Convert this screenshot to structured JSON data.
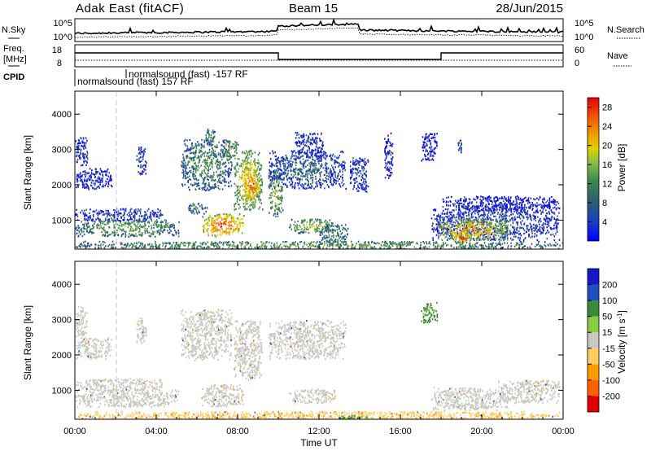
{
  "header": {
    "station": "Adak East (fitACF)",
    "beam": "Beam 15",
    "date": "28/Jun/2015"
  },
  "noise_panel": {
    "left_label": "N.Sky",
    "right_label": "N.Search",
    "left_ticks": [
      "10^5",
      "10^0"
    ],
    "right_ticks": [
      "10^5",
      "10^0"
    ]
  },
  "freq_panel": {
    "left_label_1": "Freq.",
    "left_label_2": "[MHz]",
    "right_label": "Nave",
    "left_ticks": [
      "18",
      "8"
    ],
    "right_ticks": [
      "60",
      "0"
    ]
  },
  "cpid_panel": {
    "label": "CPID",
    "entries": [
      {
        "text": "normalsound (fast) 157 RF",
        "start_hour": 0.0
      },
      {
        "text": "normalsound (fast) -157 RF",
        "start_hour": 2.05
      }
    ]
  },
  "colors": {
    "power": [
      "#1010e0",
      "#2a4fa0",
      "#3a8050",
      "#6aa055",
      "#e0d000",
      "#f0a000",
      "#f06000",
      "#e82000"
    ],
    "velocity": [
      "#e00000",
      "#ff6000",
      "#ff9a00",
      "#ffcc60",
      "#c8c8c0",
      "#88cc44",
      "#3a8a3a",
      "#2050c0",
      "#1818c8"
    ]
  },
  "chart_data": [
    {
      "type": "heatmap",
      "title": "Power",
      "xlabel": "Time UT",
      "ylabel": "Slant Range [km]",
      "x_ticks": [
        "00:00",
        "04:00",
        "08:00",
        "12:00",
        "16:00",
        "20:00",
        "00:00"
      ],
      "xlim_hours": [
        0,
        24
      ],
      "ylim": [
        180,
        4650
      ],
      "y_ticks": [
        1000,
        2000,
        3000,
        4000
      ],
      "colorbar": {
        "label": "Power [dB]",
        "ticks": [
          4,
          8,
          12,
          16,
          20,
          24,
          28
        ],
        "range": [
          0,
          30
        ]
      },
      "regions": [
        {
          "t": [
            0.0,
            5.1
          ],
          "r": [
            550,
            1050
          ],
          "level": 12
        },
        {
          "t": [
            0.0,
            4.3
          ],
          "r": [
            1000,
            1350
          ],
          "level": 5
        },
        {
          "t": [
            0.0,
            1.8
          ],
          "r": [
            1900,
            2500
          ],
          "level": 4
        },
        {
          "t": [
            0.0,
            0.6
          ],
          "r": [
            2500,
            3400
          ],
          "level": 5
        },
        {
          "t": [
            3.0,
            3.5
          ],
          "r": [
            2300,
            3100
          ],
          "level": 6
        },
        {
          "t": [
            5.2,
            7.7
          ],
          "r": [
            1850,
            3300
          ],
          "level": 10
        },
        {
          "t": [
            6.2,
            8.3
          ],
          "r": [
            550,
            1200
          ],
          "level": 24
        },
        {
          "t": [
            5.5,
            6.5
          ],
          "r": [
            1200,
            1500
          ],
          "level": 10
        },
        {
          "t": [
            6.3,
            6.9
          ],
          "r": [
            3200,
            3600
          ],
          "level": 10
        },
        {
          "t": [
            7.8,
            9.2
          ],
          "r": [
            1300,
            3000
          ],
          "level": 18
        },
        {
          "t": [
            7.2,
            8.0
          ],
          "r": [
            2800,
            3300
          ],
          "level": 14
        },
        {
          "t": [
            8.3,
            9.1
          ],
          "r": [
            1500,
            2500
          ],
          "level": 24
        },
        {
          "t": [
            9.5,
            10.2
          ],
          "r": [
            1100,
            2500
          ],
          "level": 14
        },
        {
          "t": [
            9.5,
            13.3
          ],
          "r": [
            1900,
            3000
          ],
          "level": 7
        },
        {
          "t": [
            10.8,
            12.2
          ],
          "r": [
            2800,
            3500
          ],
          "level": 5
        },
        {
          "t": [
            10.5,
            12.8
          ],
          "r": [
            650,
            1050
          ],
          "level": 14
        },
        {
          "t": [
            12.0,
            13.4
          ],
          "r": [
            300,
            900
          ],
          "level": 10
        },
        {
          "t": [
            13.5,
            14.4
          ],
          "r": [
            1800,
            2800
          ],
          "level": 5
        },
        {
          "t": [
            15.2,
            15.6
          ],
          "r": [
            2200,
            3500
          ],
          "level": 4
        },
        {
          "t": [
            17.0,
            17.8
          ],
          "r": [
            2700,
            3500
          ],
          "level": 4
        },
        {
          "t": [
            17.5,
            23.8
          ],
          "r": [
            450,
            1450
          ],
          "level": 6
        },
        {
          "t": [
            17.8,
            21.4
          ],
          "r": [
            450,
            1050
          ],
          "level": 20
        },
        {
          "t": [
            18.6,
            19.4
          ],
          "r": [
            350,
            700
          ],
          "level": 26
        },
        {
          "t": [
            18.0,
            23.8
          ],
          "r": [
            1300,
            1700
          ],
          "level": 3
        },
        {
          "t": [
            18.8,
            19.0
          ],
          "r": [
            2900,
            3300
          ],
          "level": 5
        },
        {
          "t": [
            0.0,
            24.0
          ],
          "r": [
            180,
            420
          ],
          "level": 12
        }
      ]
    },
    {
      "type": "heatmap",
      "title": "Velocity",
      "xlabel": "Time UT",
      "ylabel": "Slant Range [km]",
      "x_ticks": [
        "00:00",
        "04:00",
        "08:00",
        "12:00",
        "16:00",
        "20:00",
        "00:00"
      ],
      "xlim_hours": [
        0,
        24
      ],
      "ylim": [
        180,
        4650
      ],
      "y_ticks": [
        1000,
        2000,
        3000,
        4000
      ],
      "colorbar": {
        "label": "Velocity [m s^-1]",
        "ticks": [
          200,
          100,
          50,
          15,
          -15,
          -50,
          -100,
          -200
        ],
        "range": [
          -250,
          250
        ]
      },
      "regions": [
        {
          "t": [
            0.0,
            5.1
          ],
          "r": [
            550,
            1050
          ],
          "v": 0
        },
        {
          "t": [
            0.0,
            4.3
          ],
          "r": [
            1000,
            1350
          ],
          "v": 0
        },
        {
          "t": [
            0.0,
            1.8
          ],
          "r": [
            1900,
            2500
          ],
          "v": 0
        },
        {
          "t": [
            0.0,
            0.6
          ],
          "r": [
            2500,
            3400
          ],
          "v": 0
        },
        {
          "t": [
            3.0,
            3.5
          ],
          "r": [
            2300,
            3100
          ],
          "v": 0
        },
        {
          "t": [
            5.2,
            7.7
          ],
          "r": [
            1850,
            3300
          ],
          "v": 0
        },
        {
          "t": [
            6.2,
            8.3
          ],
          "r": [
            550,
            1200
          ],
          "v": 0
        },
        {
          "t": [
            7.8,
            9.2
          ],
          "r": [
            1300,
            3000
          ],
          "v": 0
        },
        {
          "t": [
            9.5,
            13.3
          ],
          "r": [
            1900,
            3000
          ],
          "v": 0
        },
        {
          "t": [
            10.5,
            12.8
          ],
          "r": [
            650,
            1050
          ],
          "v": 0
        },
        {
          "t": [
            17.5,
            21.4
          ],
          "r": [
            450,
            1100
          ],
          "v": 0
        },
        {
          "t": [
            20.8,
            23.8
          ],
          "r": [
            650,
            1300
          ],
          "v": 0
        },
        {
          "t": [
            17.0,
            17.8
          ],
          "r": [
            2900,
            3500
          ],
          "v": 60
        },
        {
          "t": [
            0.0,
            24.0
          ],
          "r": [
            180,
            420
          ],
          "v": -40
        },
        {
          "t": [
            13.0,
            14.5
          ],
          "r": [
            180,
            320
          ],
          "v": 60
        }
      ]
    }
  ]
}
